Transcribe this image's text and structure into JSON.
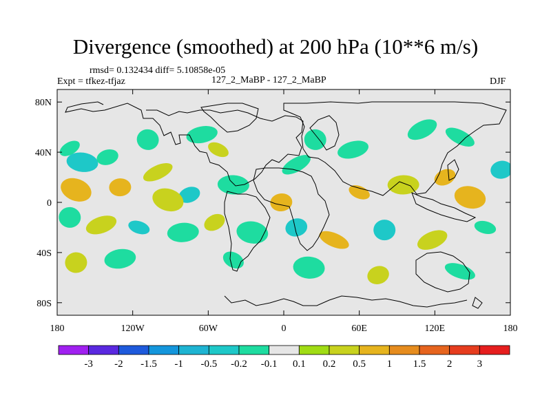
{
  "header": {
    "title": "Divergence (smoothed) at 200 hPa (10**6 m/s)",
    "stats": "rmsd= 0.132434 diff= 5.10858e-05",
    "experiment": "Expt = tfkez-tfjaz",
    "case_label": "127_2_MaBP - 127_2_MaBP",
    "season": "DJF"
  },
  "chart_data": {
    "type": "heatmap",
    "title": "Divergence (smoothed) at 200 hPa (10**6 m/s)",
    "xlabel": "",
    "ylabel": "",
    "xlim": [
      -180,
      180
    ],
    "ylim": [
      -90,
      90
    ],
    "x_ticks": [
      {
        "value": -180,
        "label": "180"
      },
      {
        "value": -120,
        "label": "120W"
      },
      {
        "value": -60,
        "label": "60W"
      },
      {
        "value": 0,
        "label": "0"
      },
      {
        "value": 60,
        "label": "60E"
      },
      {
        "value": 120,
        "label": "120E"
      },
      {
        "value": 180,
        "label": "180"
      }
    ],
    "y_ticks": [
      {
        "value": 80,
        "label": "80N"
      },
      {
        "value": 40,
        "label": "40N"
      },
      {
        "value": 0,
        "label": "0"
      },
      {
        "value": -40,
        "label": "40S"
      },
      {
        "value": -80,
        "label": "80S"
      }
    ],
    "colorbar": {
      "levels": [
        -3,
        -2,
        -1.5,
        -1,
        -0.5,
        -0.2,
        -0.1,
        0.1,
        0.2,
        0.5,
        1,
        1.5,
        2,
        3
      ],
      "labels": [
        "-3",
        "-2",
        "-1.5",
        "-1",
        "-0.5",
        "-0.2",
        "-0.1",
        "0.1",
        "0.2",
        "0.5",
        "1",
        "1.5",
        "2",
        "3"
      ],
      "colors": [
        "#a020f0",
        "#5a28e0",
        "#1e5adc",
        "#1496dc",
        "#1eb4d2",
        "#1ec8c8",
        "#1edca0",
        "#e6e6e6",
        "#a0dc14",
        "#c8d21e",
        "#e6b41e",
        "#e68c1e",
        "#e6641e",
        "#e63c1e",
        "#e61e1e"
      ]
    },
    "fields": [
      {
        "lon": -170,
        "lat": 43,
        "value": -0.2
      },
      {
        "lon": -160,
        "lat": 32,
        "value": -0.5
      },
      {
        "lon": -140,
        "lat": 36,
        "value": -0.2
      },
      {
        "lon": -165,
        "lat": 10,
        "value": 0.5
      },
      {
        "lon": -130,
        "lat": 12,
        "value": 0.5
      },
      {
        "lon": -100,
        "lat": 24,
        "value": 0.2
      },
      {
        "lon": -108,
        "lat": 50,
        "value": -0.2
      },
      {
        "lon": -65,
        "lat": 54,
        "value": -0.2
      },
      {
        "lon": -52,
        "lat": 42,
        "value": 0.2
      },
      {
        "lon": -40,
        "lat": 14,
        "value": -0.2
      },
      {
        "lon": -75,
        "lat": 6,
        "value": -0.5
      },
      {
        "lon": -92,
        "lat": 2,
        "value": 0.2
      },
      {
        "lon": -2,
        "lat": 0,
        "value": 0.5
      },
      {
        "lon": 10,
        "lat": 30,
        "value": -0.2
      },
      {
        "lon": 25,
        "lat": 50,
        "value": -0.2
      },
      {
        "lon": 55,
        "lat": 42,
        "value": -0.2
      },
      {
        "lon": 60,
        "lat": 8,
        "value": 0.5
      },
      {
        "lon": 95,
        "lat": 14,
        "value": 0.2
      },
      {
        "lon": 128,
        "lat": 20,
        "value": 0.5
      },
      {
        "lon": 148,
        "lat": 4,
        "value": 0.5
      },
      {
        "lon": 173,
        "lat": 26,
        "value": -0.5
      },
      {
        "lon": 140,
        "lat": 52,
        "value": -0.2
      },
      {
        "lon": -170,
        "lat": -12,
        "value": -0.2
      },
      {
        "lon": -145,
        "lat": -18,
        "value": 0.2
      },
      {
        "lon": -115,
        "lat": -20,
        "value": -0.5
      },
      {
        "lon": -80,
        "lat": -24,
        "value": -0.2
      },
      {
        "lon": -55,
        "lat": -16,
        "value": 0.2
      },
      {
        "lon": -25,
        "lat": -24,
        "value": -0.2
      },
      {
        "lon": 10,
        "lat": -20,
        "value": -0.5
      },
      {
        "lon": 40,
        "lat": -30,
        "value": 0.5
      },
      {
        "lon": 80,
        "lat": -22,
        "value": -0.5
      },
      {
        "lon": 118,
        "lat": -30,
        "value": 0.2
      },
      {
        "lon": 160,
        "lat": -20,
        "value": -0.2
      },
      {
        "lon": -130,
        "lat": -45,
        "value": -0.2
      },
      {
        "lon": -40,
        "lat": -46,
        "value": -0.2
      },
      {
        "lon": 20,
        "lat": -52,
        "value": -0.2
      },
      {
        "lon": 75,
        "lat": -58,
        "value": 0.2
      },
      {
        "lon": 140,
        "lat": -55,
        "value": -0.2
      },
      {
        "lon": -165,
        "lat": -48,
        "value": 0.2
      },
      {
        "lon": 110,
        "lat": 58,
        "value": -0.2
      }
    ]
  }
}
